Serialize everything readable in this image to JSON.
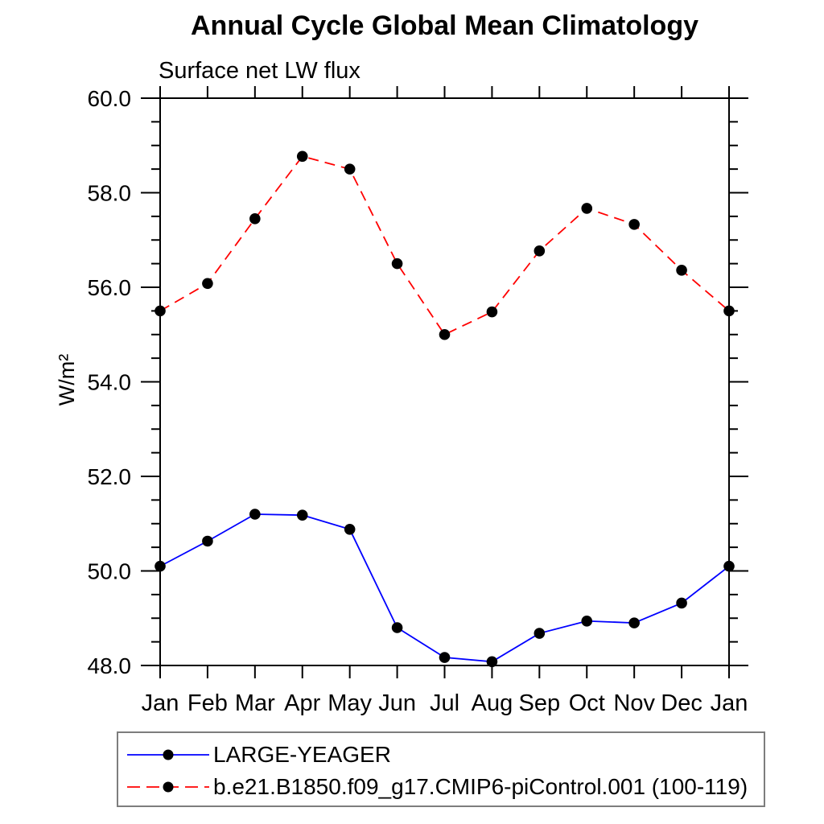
{
  "chart_data": {
    "type": "line",
    "title": "Annual Cycle Global Mean Climatology",
    "subtitle": "Surface net LW flux",
    "ylabel": "W/m²",
    "xlabel": "",
    "categories": [
      "Jan",
      "Feb",
      "Mar",
      "Apr",
      "May",
      "Jun",
      "Jul",
      "Aug",
      "Sep",
      "Oct",
      "Nov",
      "Dec",
      "Jan"
    ],
    "series": [
      {
        "name": "LARGE-YEAGER",
        "color": "#0000ff",
        "line_style": "solid",
        "marker": "filled-circle",
        "values": [
          50.1,
          50.63,
          51.2,
          51.18,
          50.88,
          48.8,
          48.17,
          48.08,
          48.68,
          48.94,
          48.9,
          49.32,
          50.1
        ]
      },
      {
        "name": "b.e21.B1850.f09_g17.CMIP6-piControl.001 (100-119)",
        "color": "#ff0000",
        "line_style": "dashed",
        "marker": "filled-circle",
        "values": [
          55.5,
          56.08,
          57.45,
          58.77,
          58.5,
          56.5,
          55.0,
          55.48,
          56.77,
          57.67,
          57.33,
          56.36,
          55.5
        ]
      }
    ],
    "ylim": [
      48.0,
      60.0
    ],
    "yticks": [
      48,
      50,
      52,
      54,
      56,
      58,
      60
    ],
    "ytick_label_format": "one-decimal",
    "ytick_minor_step": 0.5,
    "marker_color": "#000000",
    "frame_color": "#000000",
    "grid": false,
    "legend_position": "bottom-left-box"
  }
}
